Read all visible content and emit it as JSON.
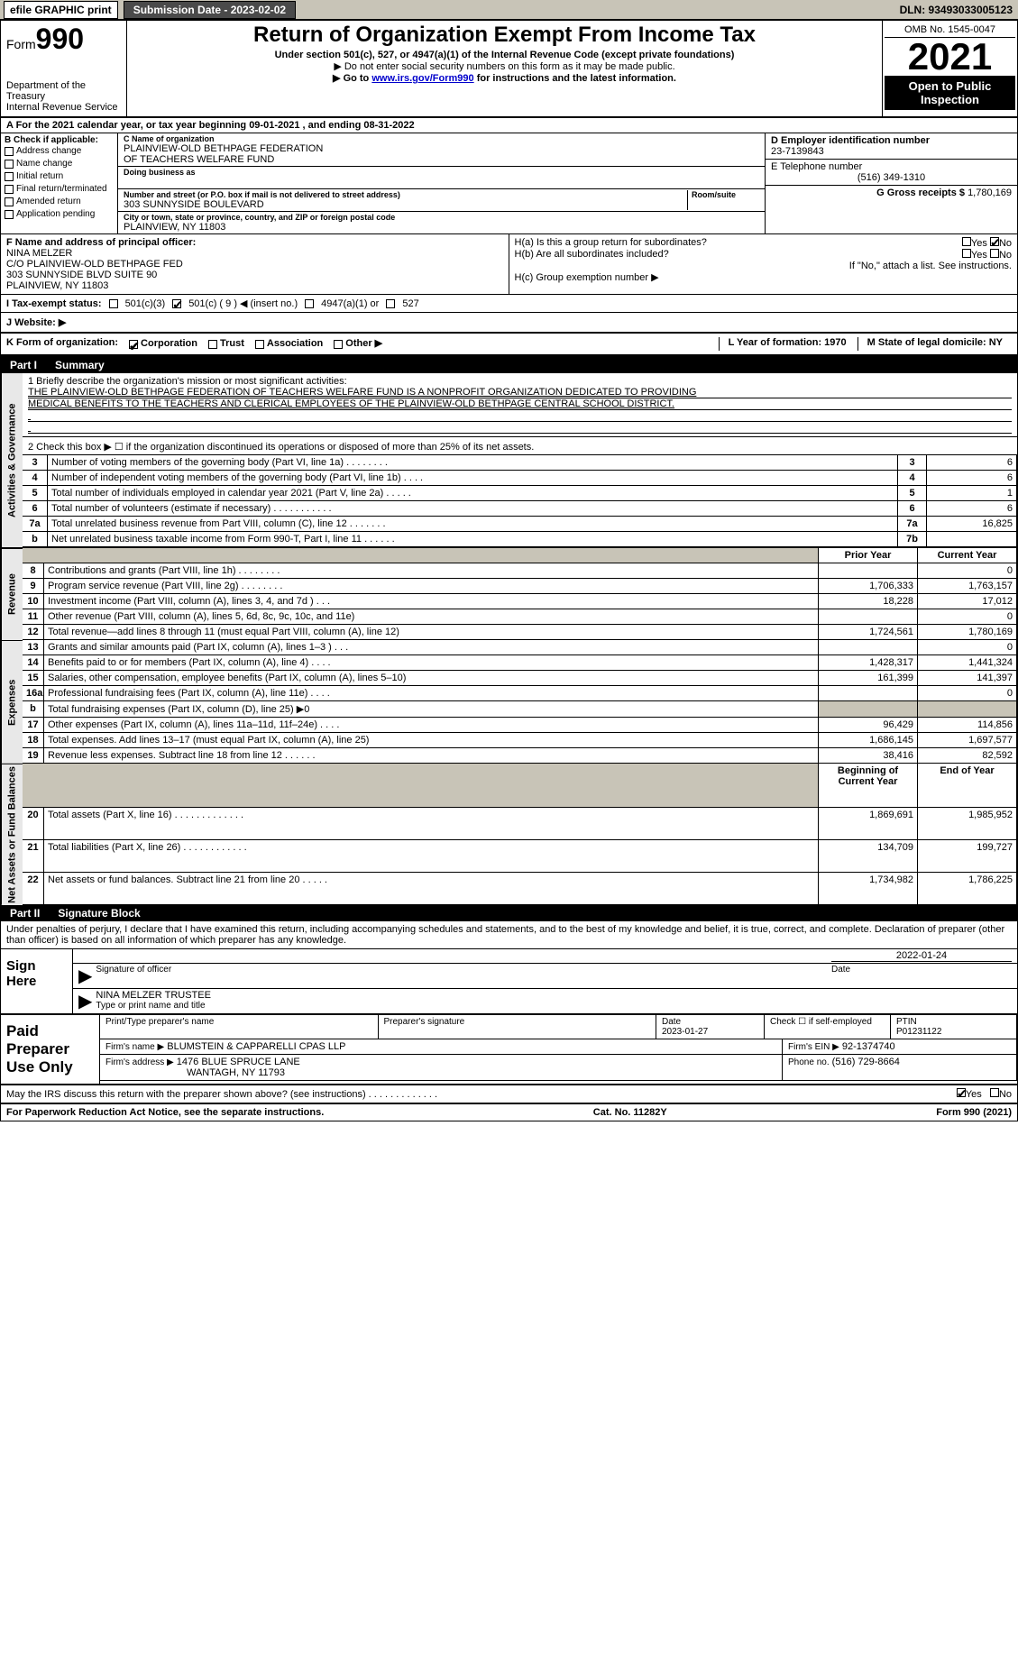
{
  "topbar": {
    "efile_label": "efile GRAPHIC print",
    "submission_label": "Submission Date - 2023-02-02",
    "dln_label": "DLN: 93493033005123"
  },
  "header": {
    "form_small": "Form",
    "form_no": "990",
    "title": "Return of Organization Exempt From Income Tax",
    "subtitle": "Under section 501(c), 527, or 4947(a)(1) of the Internal Revenue Code (except private foundations)",
    "note1": "▶ Do not enter social security numbers on this form as it may be made public.",
    "goto_prefix": "▶ Go to ",
    "goto_link": "www.irs.gov/Form990",
    "goto_suffix": " for instructions and the latest information.",
    "dept": "Department of the Treasury",
    "irs": "Internal Revenue Service",
    "omb": "OMB No. 1545-0047",
    "year": "2021",
    "open": "Open to Public Inspection"
  },
  "period": {
    "text": "A For the 2021 calendar year, or tax year beginning 09-01-2021   , and ending 08-31-2022"
  },
  "section_b": {
    "title": "B Check if applicable:",
    "items": [
      "Address change",
      "Name change",
      "Initial return",
      "Final return/terminated",
      "Amended return",
      "Application pending"
    ]
  },
  "section_c": {
    "name_label": "C Name of organization",
    "name": "PLAINVIEW-OLD BETHPAGE FEDERATION",
    "name2": "OF TEACHERS WELFARE FUND",
    "dba_label": "Doing business as",
    "dba": "",
    "street_label": "Number and street (or P.O. box if mail is not delivered to street address)",
    "room_label": "Room/suite",
    "street": "303 SUNNYSIDE BOULEVARD",
    "city_label": "City or town, state or province, country, and ZIP or foreign postal code",
    "city": "PLAINVIEW, NY  11803"
  },
  "section_d": {
    "ein_label": "D Employer identification number",
    "ein": "23-7139843",
    "tel_label": "E Telephone number",
    "tel": "(516) 349-1310",
    "gross_label": "G Gross receipts $",
    "gross": "1,780,169"
  },
  "section_f": {
    "label": "F  Name and address of principal officer:",
    "name": "NINA MELZER",
    "line1": "C/O PLAINVIEW-OLD BETHPAGE FED",
    "line2": "303 SUNNYSIDE BLVD SUITE 90",
    "line3": "PLAINVIEW, NY 11803"
  },
  "section_h": {
    "ha": "H(a)  Is this a group return for subordinates?",
    "hb": "H(b)  Are all subordinates included?",
    "hb_note": "If \"No,\" attach a list. See instructions.",
    "hc": "H(c)  Group exemption number ▶",
    "yes": "Yes",
    "no": "No"
  },
  "section_i": {
    "label": "I  Tax-exempt status:",
    "c3": "501(c)(3)",
    "c": "501(c) ( 9 ) ◀ (insert no.)",
    "a4947": "4947(a)(1) or",
    "s527": "527"
  },
  "section_j": {
    "label": "J  Website: ▶"
  },
  "section_k": {
    "label": "K Form of organization:",
    "corp": "Corporation",
    "trust": "Trust",
    "assoc": "Association",
    "other": "Other ▶",
    "L": "L Year of formation: 1970",
    "M": "M State of legal domicile: NY"
  },
  "part1": {
    "part": "Part I",
    "title": "Summary",
    "line1_lead": "1   Briefly describe the organization's mission or most significant activities:",
    "mission1": "THE PLAINVIEW-OLD BETHPAGE FEDERATION OF TEACHERS WELFARE FUND IS A NONPROFIT ORGANIZATION DEDICATED TO PROVIDING",
    "mission2": "MEDICAL BENEFITS TO THE TEACHERS AND CLERICAL EMPLOYEES OF THE PLAINVIEW-OLD BETHPAGE CENTRAL SCHOOL DISTRICT.",
    "line2": "2   Check this box ▶ ☐  if the organization discontinued its operations or disposed of more than 25% of its net assets.",
    "sidebar_gov": "Activities & Governance",
    "sidebar_rev": "Revenue",
    "sidebar_exp": "Expenses",
    "sidebar_net": "Net Assets or Fund Balances",
    "rows_gov": [
      {
        "n": "3",
        "d": "Number of voting members of the governing body (Part VI, line 1a)   .    .    .    .    .    .    .    .",
        "k": "3",
        "v": "6"
      },
      {
        "n": "4",
        "d": "Number of independent voting members of the governing body (Part VI, line 1b)   .    .    .    .",
        "k": "4",
        "v": "6"
      },
      {
        "n": "5",
        "d": "Total number of individuals employed in calendar year 2021 (Part V, line 2a)   .    .    .    .    .",
        "k": "5",
        "v": "1"
      },
      {
        "n": "6",
        "d": "Total number of volunteers (estimate if necessary)    .    .    .    .    .    .    .    .    .    .    .",
        "k": "6",
        "v": "6"
      },
      {
        "n": "7a",
        "d": "Total unrelated business revenue from Part VIII, column (C), line 12   .    .    .    .    .    .    .",
        "k": "7a",
        "v": "16,825"
      },
      {
        "n": "b",
        "d": "Net unrelated business taxable income from Form 990-T, Part I, line 11    .    .    .    .    .    .",
        "k": "7b",
        "v": ""
      }
    ],
    "col_prior": "Prior Year",
    "col_curr": "Current Year",
    "rows_rev": [
      {
        "n": "8",
        "d": "Contributions and grants (Part VIII, line 1h)    .    .    .    .    .    .    .    .",
        "p": "",
        "c": "0"
      },
      {
        "n": "9",
        "d": "Program service revenue (Part VIII, line 2g)    .    .    .    .    .    .    .    .",
        "p": "1,706,333",
        "c": "1,763,157"
      },
      {
        "n": "10",
        "d": "Investment income (Part VIII, column (A), lines 3, 4, and 7d )    .    .    .",
        "p": "18,228",
        "c": "17,012"
      },
      {
        "n": "11",
        "d": "Other revenue (Part VIII, column (A), lines 5, 6d, 8c, 9c, 10c, and 11e)",
        "p": "",
        "c": "0"
      },
      {
        "n": "12",
        "d": "Total revenue—add lines 8 through 11 (must equal Part VIII, column (A), line 12)",
        "p": "1,724,561",
        "c": "1,780,169"
      }
    ],
    "rows_exp": [
      {
        "n": "13",
        "d": "Grants and similar amounts paid (Part IX, column (A), lines 1–3 )   .    .    .",
        "p": "",
        "c": "0"
      },
      {
        "n": "14",
        "d": "Benefits paid to or for members (Part IX, column (A), line 4)   .    .    .    .",
        "p": "1,428,317",
        "c": "1,441,324"
      },
      {
        "n": "15",
        "d": "Salaries, other compensation, employee benefits (Part IX, column (A), lines 5–10)",
        "p": "161,399",
        "c": "141,397"
      },
      {
        "n": "16a",
        "d": "Professional fundraising fees (Part IX, column (A), line 11e)   .    .    .    .",
        "p": "",
        "c": "0"
      },
      {
        "n": "b",
        "d": "Total fundraising expenses (Part IX, column (D), line 25) ▶0",
        "p": "__SHADE__",
        "c": "__SHADE__"
      },
      {
        "n": "17",
        "d": "Other expenses (Part IX, column (A), lines 11a–11d, 11f–24e)    .    .    .    .",
        "p": "96,429",
        "c": "114,856"
      },
      {
        "n": "18",
        "d": "Total expenses. Add lines 13–17 (must equal Part IX, column (A), line 25)",
        "p": "1,686,145",
        "c": "1,697,577"
      },
      {
        "n": "19",
        "d": "Revenue less expenses. Subtract line 18 from line 12   .    .    .    .    .    .",
        "p": "38,416",
        "c": "82,592"
      }
    ],
    "col_begin": "Beginning of Current Year",
    "col_end": "End of Year",
    "rows_net": [
      {
        "n": "20",
        "d": "Total assets (Part X, line 16)   .    .    .    .    .    .    .    .    .    .    .    .    .",
        "p": "1,869,691",
        "c": "1,985,952"
      },
      {
        "n": "21",
        "d": "Total liabilities (Part X, line 26)   .    .    .    .    .    .    .    .    .    .    .    .",
        "p": "134,709",
        "c": "199,727"
      },
      {
        "n": "22",
        "d": "Net assets or fund balances. Subtract line 21 from line 20    .    .    .    .    .",
        "p": "1,734,982",
        "c": "1,786,225"
      }
    ]
  },
  "part2": {
    "part": "Part II",
    "title": "Signature Block",
    "decl": "Under penalties of perjury, I declare that I have examined this return, including accompanying schedules and statements, and to the best of my knowledge and belief, it is true, correct, and complete. Declaration of preparer (other than officer) is based on all information of which preparer has any knowledge.",
    "sign_here": "Sign Here",
    "sig_officer": "Signature of officer",
    "sig_date": "2022-01-24",
    "date_label": "Date",
    "officer_name": "NINA MELZER  TRUSTEE",
    "type_name": "Type or print name and title",
    "paid_label": "Paid Preparer Use Only",
    "prep_name_label": "Print/Type preparer's name",
    "prep_sig_label": "Preparer's signature",
    "prep_date_label": "Date",
    "prep_date": "2023-01-27",
    "check_self": "Check ☐ if self-employed",
    "ptin_label": "PTIN",
    "ptin": "P01231122",
    "firm_name_label": "Firm's name    ▶",
    "firm_name": "BLUMSTEIN & CAPPARELLI CPAS LLP",
    "firm_ein_label": "Firm's EIN ▶",
    "firm_ein": "92-1374740",
    "firm_addr_label": "Firm's address ▶",
    "firm_addr1": "1476 BLUE SPRUCE LANE",
    "firm_addr2": "WANTAGH, NY  11793",
    "phone_label": "Phone no.",
    "phone": "(516) 729-8664",
    "may_irs": "May the IRS discuss this return with the preparer shown above? (see instructions)    .    .    .    .    .    .    .    .    .    .    .    .    .",
    "yes": "Yes",
    "no": "No"
  },
  "footer": {
    "pra": "For Paperwork Reduction Act Notice, see the separate instructions.",
    "cat": "Cat. No. 11282Y",
    "form": "Form 990 (2021)"
  },
  "colors": {
    "shade": "#c8c4b7",
    "link": "#0000cc"
  }
}
